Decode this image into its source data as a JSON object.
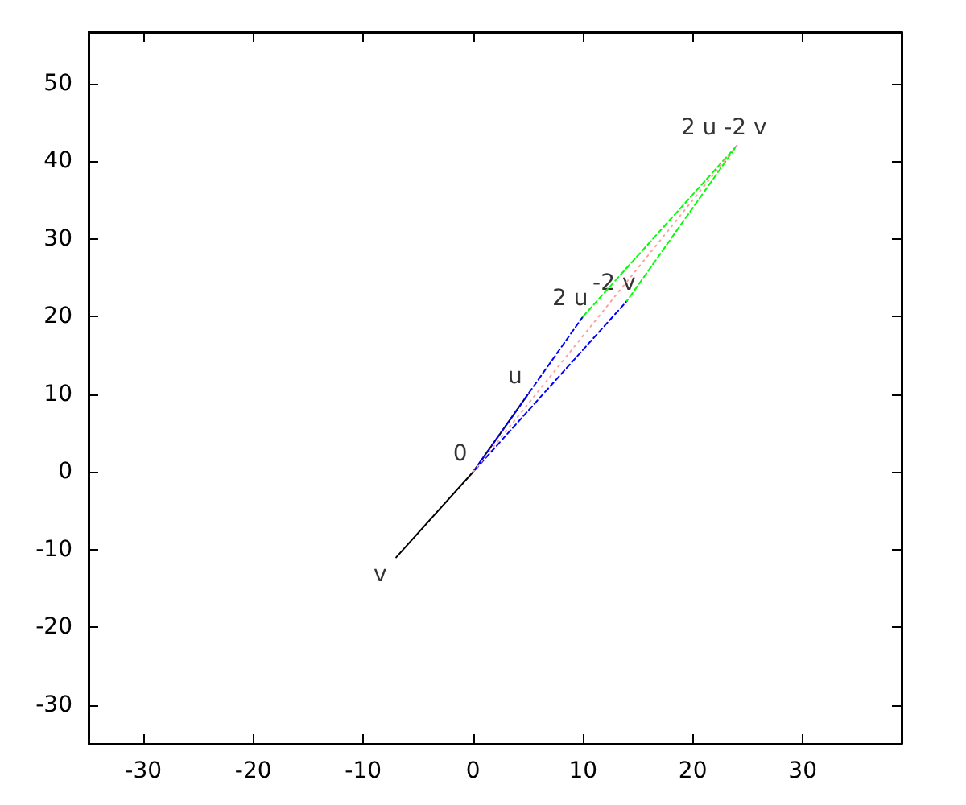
{
  "chart_data": {
    "type": "line",
    "grid": false,
    "marker": "none",
    "xlim": [
      -35,
      39
    ],
    "ylim": [
      -35,
      56.6
    ],
    "xticks": [
      -30,
      -20,
      -10,
      0,
      10,
      20,
      30
    ],
    "yticks": [
      -30,
      -20,
      -10,
      0,
      10,
      20,
      30,
      40,
      50
    ],
    "series": [
      {
        "color": "#000000",
        "line_style": "solid",
        "x": [
          -7,
          0,
          5
        ],
        "values": [
          -11,
          0,
          10
        ]
      },
      {
        "color": "#0000ff",
        "line_style": "dashed",
        "x": [
          10,
          0,
          14
        ],
        "values": [
          20,
          0,
          22
        ]
      },
      {
        "color": "#00ff00",
        "line_style": "dashed",
        "x": [
          10,
          24,
          14
        ],
        "values": [
          20,
          42,
          22
        ]
      },
      {
        "color": "#ffa0a0",
        "line_style": "dotted",
        "x": [
          0,
          24
        ],
        "values": [
          0,
          42
        ]
      }
    ],
    "annotations": [
      {
        "text": "0",
        "x": 0,
        "y": 0
      },
      {
        "text": "u",
        "x": 5,
        "y": 10
      },
      {
        "text": "v",
        "x": -7,
        "y": -11
      },
      {
        "text": "2 u",
        "x": 10,
        "y": 20
      },
      {
        "text": "-2 v",
        "x": 14,
        "y": 22
      },
      {
        "text": "2 u -2 v",
        "x": 24,
        "y": 42
      }
    ]
  }
}
